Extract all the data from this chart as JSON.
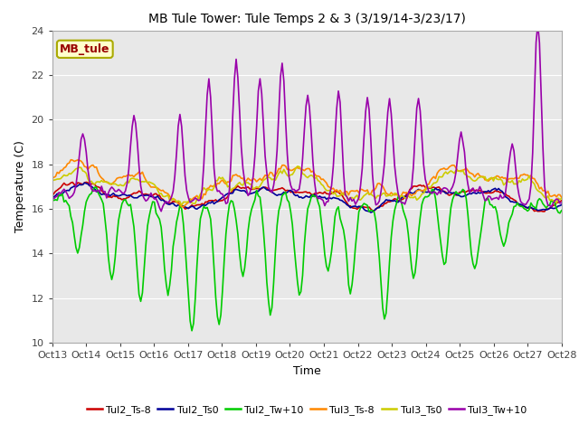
{
  "title": "MB Tule Tower: Tule Temps 2 & 3 (3/19/14-3/23/17)",
  "xlabel": "Time",
  "ylabel": "Temperature (C)",
  "ylim": [
    10,
    24
  ],
  "yticks": [
    10,
    12,
    14,
    16,
    18,
    20,
    22,
    24
  ],
  "xtick_labels": [
    "Oct 13",
    "Oct 14",
    "Oct 15",
    "Oct 16",
    "Oct 17",
    "Oct 18",
    "Oct 19",
    "Oct 20",
    "Oct 21",
    "Oct 22",
    "Oct 23",
    "Oct 24",
    "Oct 25",
    "Oct 26",
    "Oct 27",
    "Oct 28"
  ],
  "n_points": 300,
  "plot_bg": "#e8e8e8",
  "fig_bg": "#ffffff",
  "line_colors": {
    "Tul2_Ts-8": "#cc0000",
    "Tul2_Ts0": "#000099",
    "Tul2_Tw+10": "#00cc00",
    "Tul3_Ts-8": "#ff8800",
    "Tul3_Ts0": "#cccc00",
    "Tul3_Tw+10": "#9900aa"
  },
  "legend_label_box": "MB_tule",
  "legend_box_facecolor": "#ffffcc",
  "legend_box_edgecolor": "#aaaa00",
  "legend_text_color": "#990000",
  "grid_color": "#ffffff",
  "line_width": 1.2,
  "title_fontsize": 10,
  "axis_label_fontsize": 9,
  "tick_fontsize": 8,
  "legend_fontsize": 8
}
